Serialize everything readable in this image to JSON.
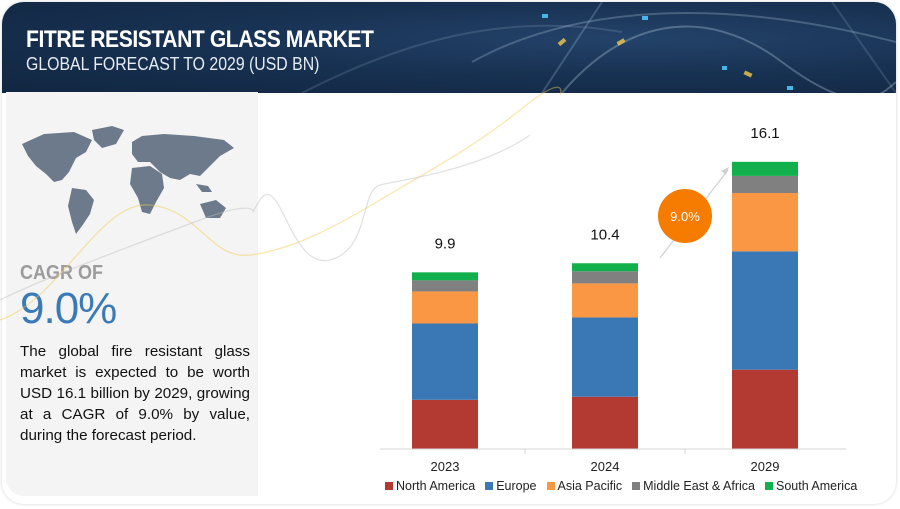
{
  "header": {
    "title": "FITRE RESISTANT GLASS MARKET",
    "subtitle": "GLOBAL FORECAST TO 2029 (USD BN)"
  },
  "summary": {
    "cagr_label": "CAGR OF",
    "cagr_value": "9.0%",
    "description": "The global fire resistant glass market is expected to be worth USD  16.1 billion by 2029, growing at a CAGR of 9.0% by value, during the forecast period.",
    "map_icon": "world-map-icon"
  },
  "colors": {
    "banner": "#15304f",
    "accent_blue": "#3a7ab7",
    "cagr_bubble": "#f57c00"
  },
  "chart_data": {
    "type": "bar",
    "stacked": true,
    "title": "FITRE RESISTANT GLASS MARKET — GLOBAL FORECAST TO 2029 (USD BN)",
    "xlabel": "",
    "ylabel": "USD BN",
    "categories": [
      "2023",
      "2024",
      "2029"
    ],
    "totals": [
      "9.9",
      "10.4",
      "16.1"
    ],
    "total_values": [
      9.9,
      10.4,
      16.1
    ],
    "series": [
      {
        "name": "North America",
        "color": "#b33a33",
        "values": [
          2.76,
          2.93,
          4.45
        ]
      },
      {
        "name": "Europe",
        "color": "#3a78b5",
        "values": [
          4.28,
          4.45,
          6.64
        ]
      },
      {
        "name": "Asia Pacific",
        "color": "#f99744",
        "values": [
          1.8,
          1.91,
          3.27
        ]
      },
      {
        "name": "Middle East & Africa",
        "color": "#808080",
        "values": [
          0.62,
          0.68,
          0.96
        ]
      },
      {
        "name": "South America",
        "color": "#12b04c",
        "values": [
          0.45,
          0.45,
          0.79
        ]
      }
    ],
    "ylim": [
      0,
      16.1
    ],
    "grid": false,
    "legend_position": "bottom",
    "annotation": {
      "label": "9.0%",
      "meaning": "CAGR 2024-2029"
    }
  }
}
